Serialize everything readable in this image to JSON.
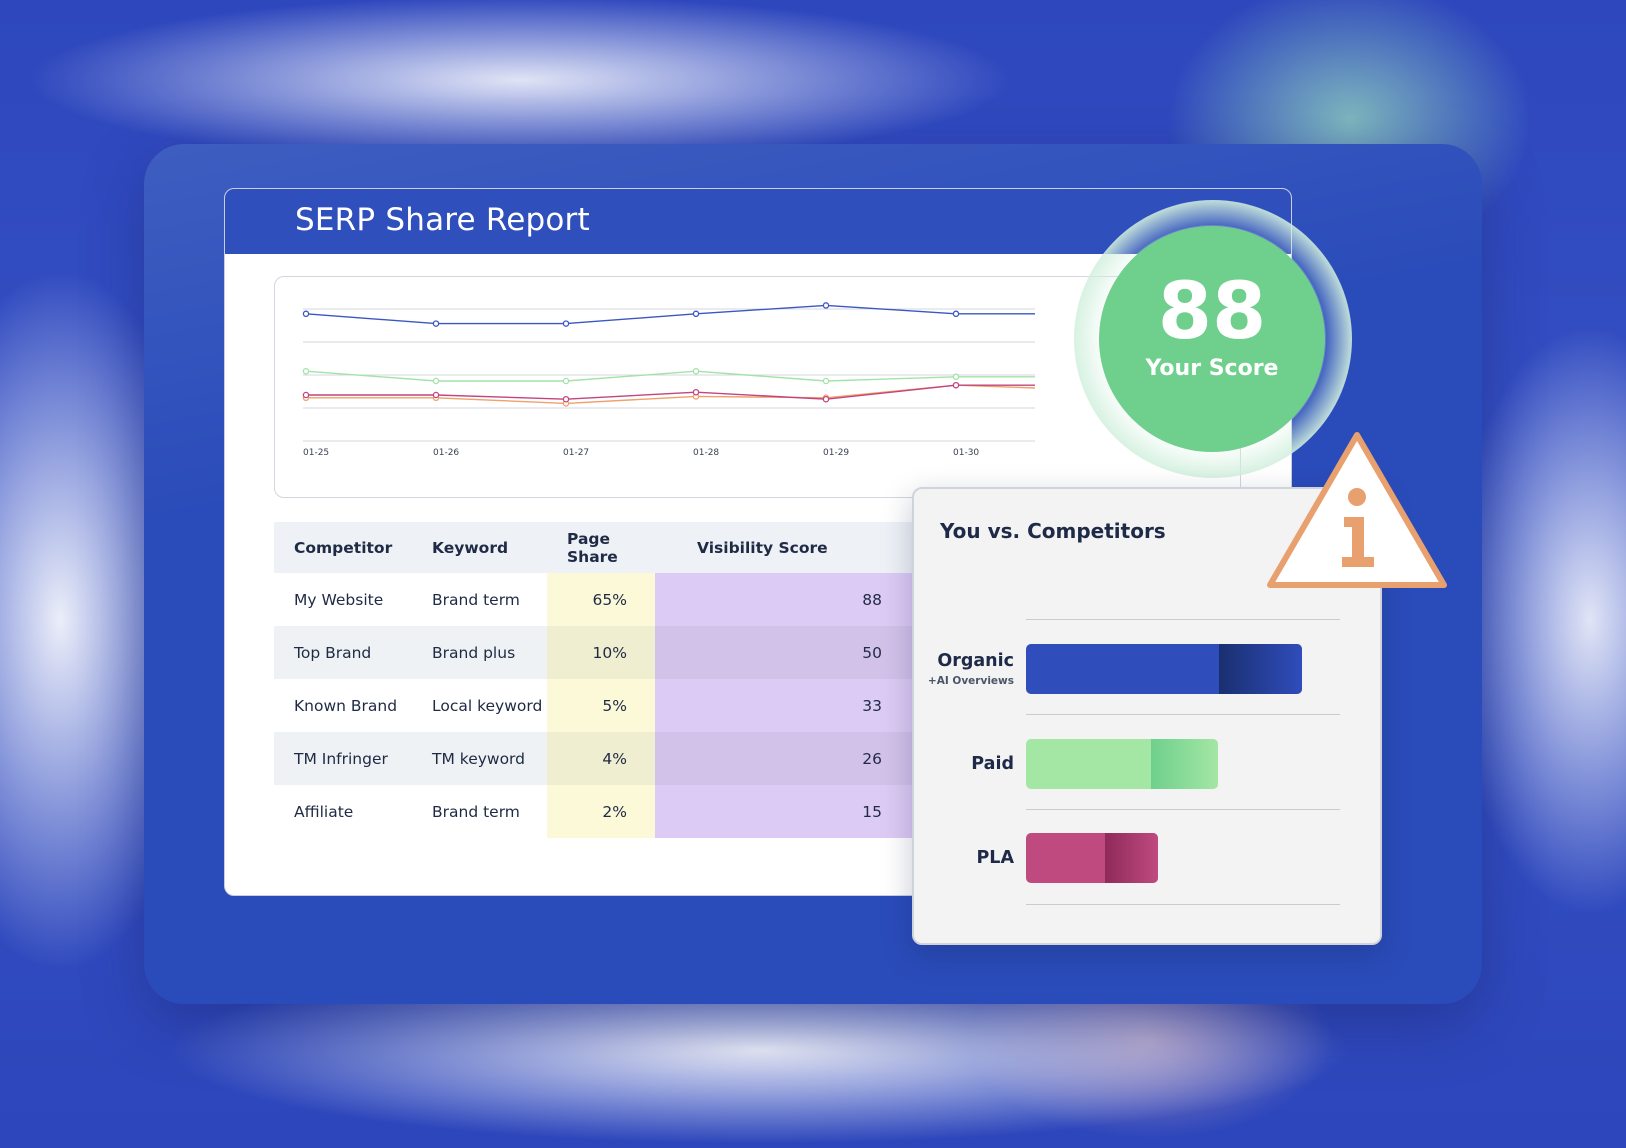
{
  "report": {
    "title": "SERP Share Report"
  },
  "chart_data": {
    "type": "line",
    "x": [
      "01-25",
      "01-26",
      "01-27",
      "01-28",
      "01-29",
      "01-30"
    ],
    "ylim": [
      0,
      100
    ],
    "grid": true,
    "series": [
      {
        "color": "#3a57c4",
        "values": [
          88,
          81,
          81,
          88,
          94,
          88
        ]
      },
      {
        "color": "#a2e3a8",
        "values": [
          47,
          40,
          40,
          47,
          40,
          43
        ]
      },
      {
        "color": "#c3447e",
        "values": [
          30,
          30,
          27,
          32,
          27,
          37
        ]
      },
      {
        "color": "#f0a06a",
        "values": [
          28,
          28,
          24,
          29,
          28,
          37
        ]
      }
    ]
  },
  "table": {
    "headers": [
      "Competitor",
      "Keyword",
      "Page Share",
      "Visibility Score"
    ],
    "rows": [
      [
        "My Website",
        "Brand term",
        "65%",
        "88"
      ],
      [
        "Top Brand",
        "Brand plus",
        "10%",
        "50"
      ],
      [
        "Known Brand",
        "Local keyword",
        "5%",
        "33"
      ],
      [
        "TM Infringer",
        "TM keyword",
        "4%",
        "26"
      ],
      [
        "Affiliate",
        "Brand term",
        "2%",
        "15"
      ]
    ]
  },
  "score": {
    "value": "88",
    "label": "Your Score",
    "color": "#6fcf8d"
  },
  "comparison": {
    "title": "You vs. Competitors",
    "bars": [
      {
        "label": "Organic",
        "sublabel": "+AI Overviews",
        "fraction": 0.88,
        "highlight_fraction": 0.3,
        "color": "#2f4dbb",
        "tip_color": "#1a2f70"
      },
      {
        "label": "Paid",
        "sublabel": "",
        "fraction": 0.61,
        "highlight_fraction": 0.35,
        "color": "#a4e6a4",
        "tip_color": "#6fd08d"
      },
      {
        "label": "PLA",
        "sublabel": "",
        "fraction": 0.42,
        "highlight_fraction": 0.4,
        "color": "#bf4a80",
        "tip_color": "#8f2a5a"
      }
    ]
  },
  "warning": {
    "icon": "info-warning-icon",
    "color": "#e8a06f"
  }
}
